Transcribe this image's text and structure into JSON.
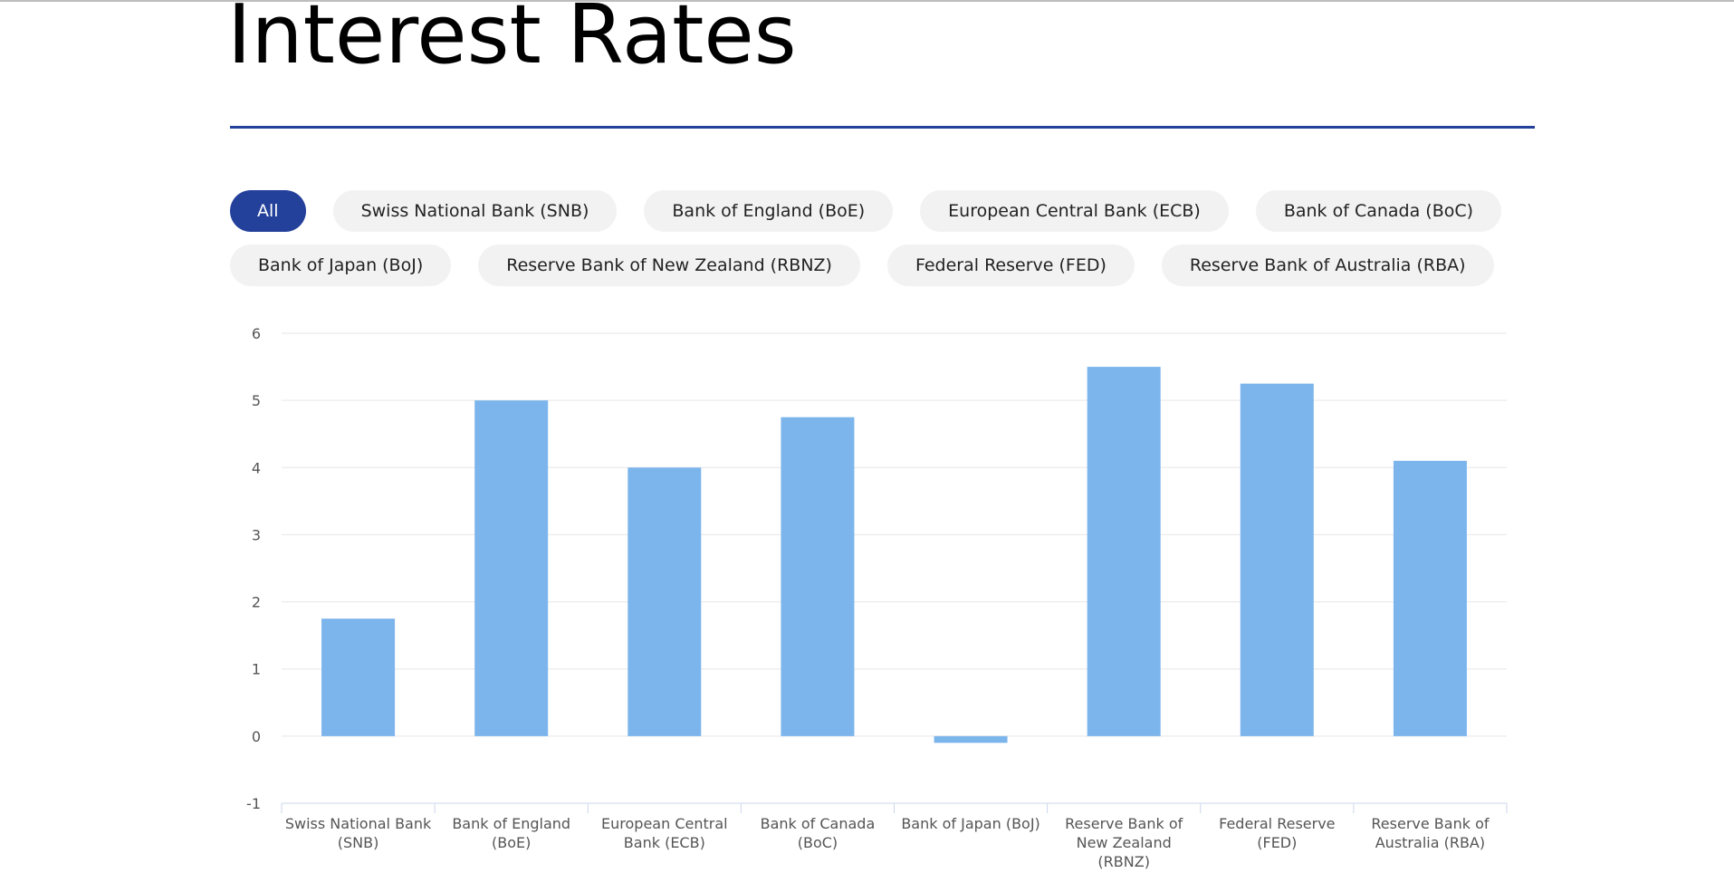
{
  "page": {
    "title": "Interest Rates"
  },
  "filters": {
    "rows": [
      [
        {
          "label": "All",
          "active": true
        },
        {
          "label": "Swiss National Bank (SNB)",
          "active": false
        },
        {
          "label": "Bank of England (BoE)",
          "active": false
        },
        {
          "label": "European Central Bank (ECB)",
          "active": false
        },
        {
          "label": "Bank of Canada (BoC)",
          "active": false
        }
      ],
      [
        {
          "label": "Bank of Japan (BoJ)",
          "active": false
        },
        {
          "label": "Reserve Bank of New Zealand (RBNZ)",
          "active": false
        },
        {
          "label": "Federal Reserve (FED)",
          "active": false
        },
        {
          "label": "Reserve Bank of Australia (RBA)",
          "active": false
        }
      ]
    ]
  },
  "colors": {
    "accent": "#23409a",
    "bar": "#7cb5ec",
    "grid": "#e6e6e6",
    "axis": "#ccd6eb"
  },
  "chart_data": {
    "type": "bar",
    "title": "",
    "xlabel": "",
    "ylabel": "",
    "categories": [
      [
        "Swiss National Bank",
        "(SNB)"
      ],
      [
        "Bank of England",
        "(BoE)"
      ],
      [
        "European Central",
        "Bank (ECB)"
      ],
      [
        "Bank of Canada",
        "(BoC)"
      ],
      [
        "Bank of Japan (BoJ)"
      ],
      [
        "Reserve Bank of",
        "New Zealand",
        "(RBNZ)"
      ],
      [
        "Federal Reserve",
        "(FED)"
      ],
      [
        "Reserve Bank of",
        "Australia (RBA)"
      ]
    ],
    "values": [
      1.75,
      5.0,
      4.0,
      4.75,
      -0.1,
      5.5,
      5.25,
      4.1
    ],
    "ylim": [
      -1,
      6
    ],
    "yticks": [
      "-1",
      "0",
      "1",
      "2",
      "3",
      "4",
      "5",
      "6"
    ],
    "grid": true,
    "legend": "none"
  }
}
